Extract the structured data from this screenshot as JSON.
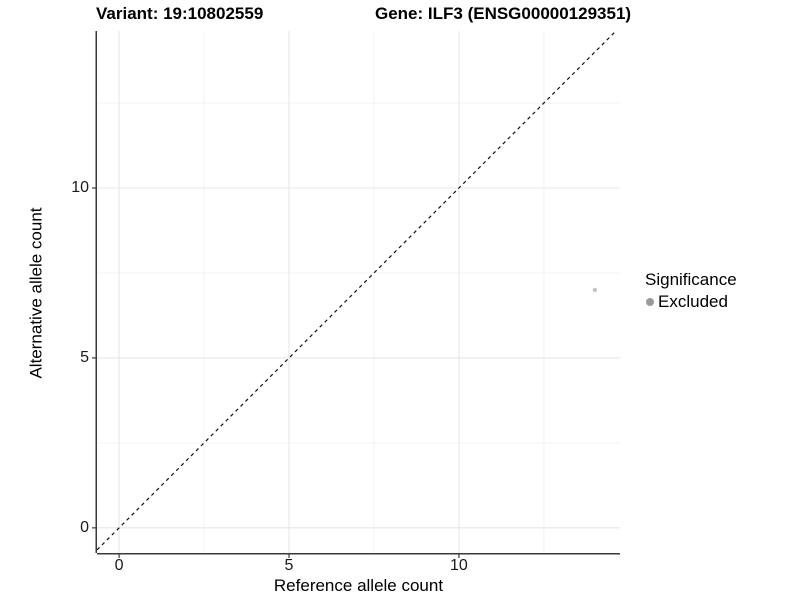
{
  "titles": {
    "variant": "Variant: 19:10802559",
    "gene": "Gene: ILF3 (ENSG00000129351)"
  },
  "chart_data": {
    "type": "scatter",
    "title_left": "Variant: 19:10802559",
    "title_right": "Gene: ILF3 (ENSG00000129351)",
    "xlabel": "Reference allele count",
    "ylabel": "Alternative allele count",
    "xlim": [
      -0.65,
      14.74
    ],
    "ylim": [
      -0.74,
      14.62
    ],
    "x_major_ticks": [
      0,
      5,
      10
    ],
    "y_major_ticks": [
      0,
      5,
      10
    ],
    "x_minor_ticks": [
      2.5,
      7.5,
      12.5
    ],
    "y_minor_ticks": [
      2.5,
      7.5,
      12.5
    ],
    "grid": true,
    "legend_position": "right",
    "points": [
      {
        "x": 14,
        "y": 7,
        "series": "Excluded",
        "color": "#c4c4c4",
        "radius": 2.2
      }
    ],
    "reference_line": {
      "slope": 1,
      "intercept": 0,
      "style": "dashed",
      "color": "#111111"
    },
    "legend": {
      "title": "Significance",
      "entries": [
        {
          "label": "Excluded",
          "color": "#9a9a9a"
        }
      ]
    }
  },
  "colors": {
    "axis": "#3a3a3a",
    "grid_major": "#e7e7e7",
    "grid_minor": "#f2f2f2",
    "background": "#ffffff"
  }
}
